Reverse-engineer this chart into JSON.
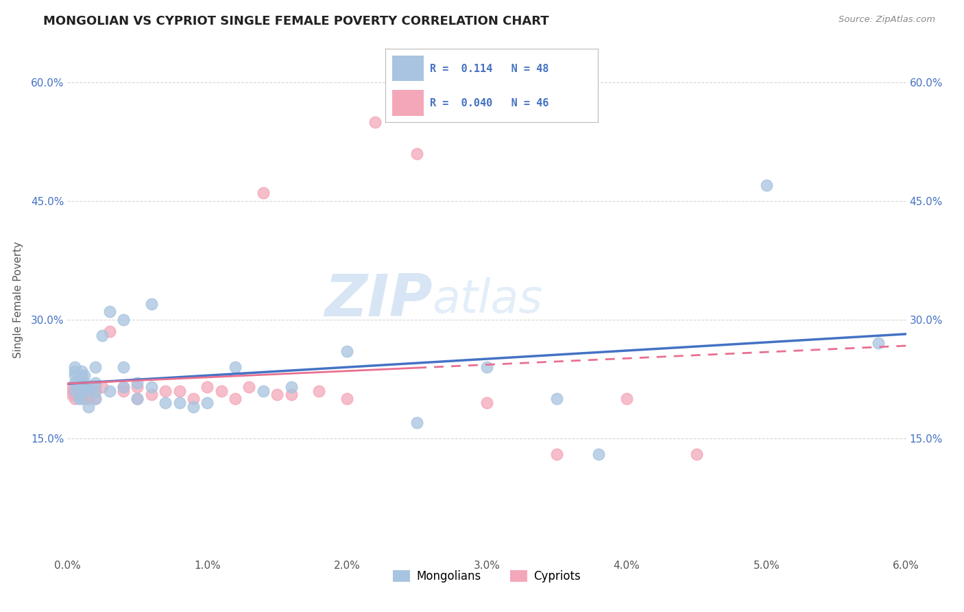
{
  "title": "MONGOLIAN VS CYPRIOT SINGLE FEMALE POVERTY CORRELATION CHART",
  "source": "Source: ZipAtlas.com",
  "ylabel": "Single Female Poverty",
  "xlim": [
    0.0,
    0.06
  ],
  "ylim": [
    0.0,
    0.65
  ],
  "yticks": [
    0.15,
    0.3,
    0.45,
    0.6
  ],
  "xticks": [
    0.0,
    0.01,
    0.02,
    0.03,
    0.04,
    0.05,
    0.06
  ],
  "mongolian_color": "#a8c4e0",
  "cypriot_color": "#f4a7b9",
  "mongolian_line_color": "#4472C4",
  "cypriot_line_color": "#E87090",
  "R_mongolian": 0.114,
  "N_mongolian": 48,
  "R_cypriot": 0.04,
  "N_cypriot": 46,
  "watermark_zip": "ZIP",
  "watermark_atlas": "atlas",
  "mongolian_x": [
    0.0005,
    0.0005,
    0.0005,
    0.0005,
    0.0005,
    0.0008,
    0.0008,
    0.0008,
    0.001,
    0.001,
    0.001,
    0.001,
    0.001,
    0.001,
    0.0012,
    0.0012,
    0.0012,
    0.0015,
    0.0015,
    0.0015,
    0.002,
    0.002,
    0.002,
    0.002,
    0.0025,
    0.003,
    0.003,
    0.004,
    0.004,
    0.004,
    0.005,
    0.005,
    0.006,
    0.006,
    0.007,
    0.008,
    0.009,
    0.01,
    0.012,
    0.014,
    0.016,
    0.02,
    0.025,
    0.03,
    0.035,
    0.038,
    0.05,
    0.058
  ],
  "mongolian_y": [
    0.21,
    0.23,
    0.235,
    0.24,
    0.22,
    0.2,
    0.215,
    0.22,
    0.21,
    0.22,
    0.225,
    0.23,
    0.235,
    0.2,
    0.215,
    0.22,
    0.23,
    0.19,
    0.21,
    0.215,
    0.2,
    0.21,
    0.22,
    0.24,
    0.28,
    0.21,
    0.31,
    0.215,
    0.24,
    0.3,
    0.22,
    0.2,
    0.215,
    0.32,
    0.195,
    0.195,
    0.19,
    0.195,
    0.24,
    0.21,
    0.215,
    0.26,
    0.17,
    0.24,
    0.2,
    0.13,
    0.47,
    0.27
  ],
  "cypriot_x": [
    0.0003,
    0.0003,
    0.0003,
    0.0005,
    0.0005,
    0.0005,
    0.0008,
    0.0008,
    0.0008,
    0.001,
    0.001,
    0.001,
    0.001,
    0.0012,
    0.0012,
    0.0012,
    0.0015,
    0.0015,
    0.002,
    0.002,
    0.002,
    0.0025,
    0.003,
    0.004,
    0.004,
    0.005,
    0.005,
    0.006,
    0.007,
    0.008,
    0.009,
    0.01,
    0.011,
    0.012,
    0.013,
    0.014,
    0.015,
    0.016,
    0.018,
    0.02,
    0.022,
    0.025,
    0.03,
    0.035,
    0.04,
    0.045
  ],
  "cypriot_y": [
    0.215,
    0.21,
    0.205,
    0.21,
    0.2,
    0.215,
    0.205,
    0.21,
    0.215,
    0.21,
    0.22,
    0.215,
    0.21,
    0.2,
    0.215,
    0.21,
    0.21,
    0.2,
    0.2,
    0.215,
    0.21,
    0.215,
    0.285,
    0.21,
    0.215,
    0.2,
    0.215,
    0.205,
    0.21,
    0.21,
    0.2,
    0.215,
    0.21,
    0.2,
    0.215,
    0.46,
    0.205,
    0.205,
    0.21,
    0.2,
    0.55,
    0.51,
    0.195,
    0.13,
    0.2,
    0.13
  ]
}
